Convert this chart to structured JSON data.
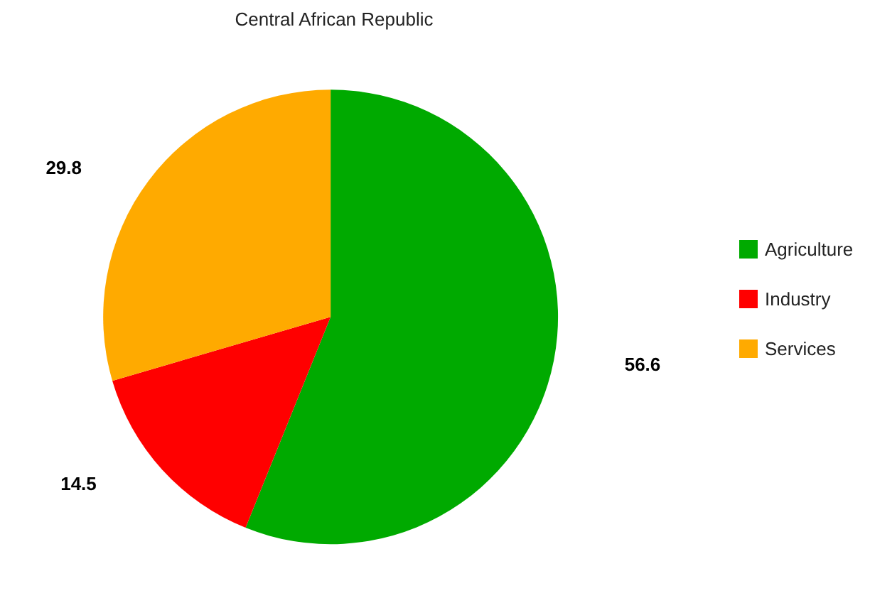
{
  "chart_data": {
    "type": "pie",
    "title": "Central African Republic",
    "categories": [
      "Agriculture",
      "Industry",
      "Services"
    ],
    "values": [
      56.6,
      14.5,
      29.8
    ],
    "colors": [
      "#00aa00",
      "#ff0000",
      "#ffaa00"
    ],
    "data_labels": true,
    "legend": "right"
  }
}
